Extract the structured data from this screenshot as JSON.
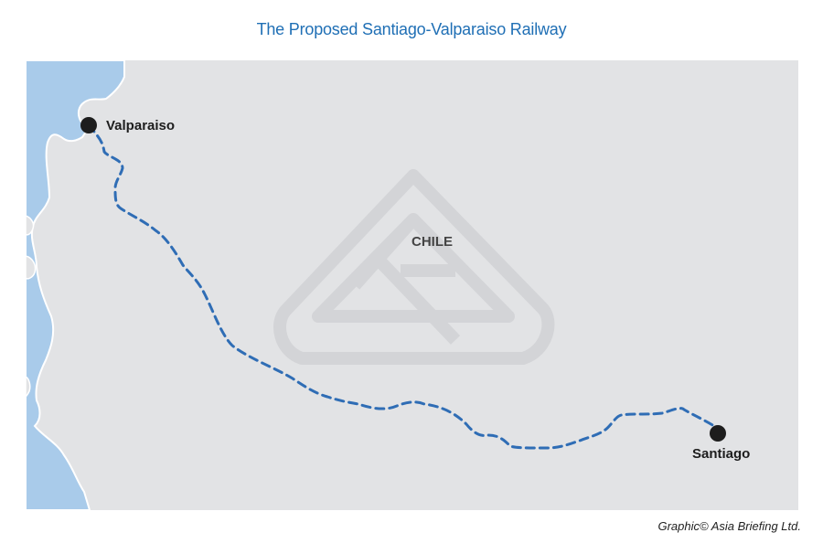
{
  "title": "The Proposed Santiago-Valparaiso Railway",
  "map": {
    "country_label": "CHILE",
    "cities": {
      "valparaiso": "Valparaiso",
      "santiago": "Santiago"
    },
    "colors": {
      "land": "#e2e3e5",
      "sea": "#a9cbea",
      "route": "#2f6db5",
      "city_marker": "#1d1d1d",
      "watermark": "#d3d4d7"
    },
    "route_style": "dashed"
  },
  "credit": "Graphic© Asia Briefing Ltd."
}
